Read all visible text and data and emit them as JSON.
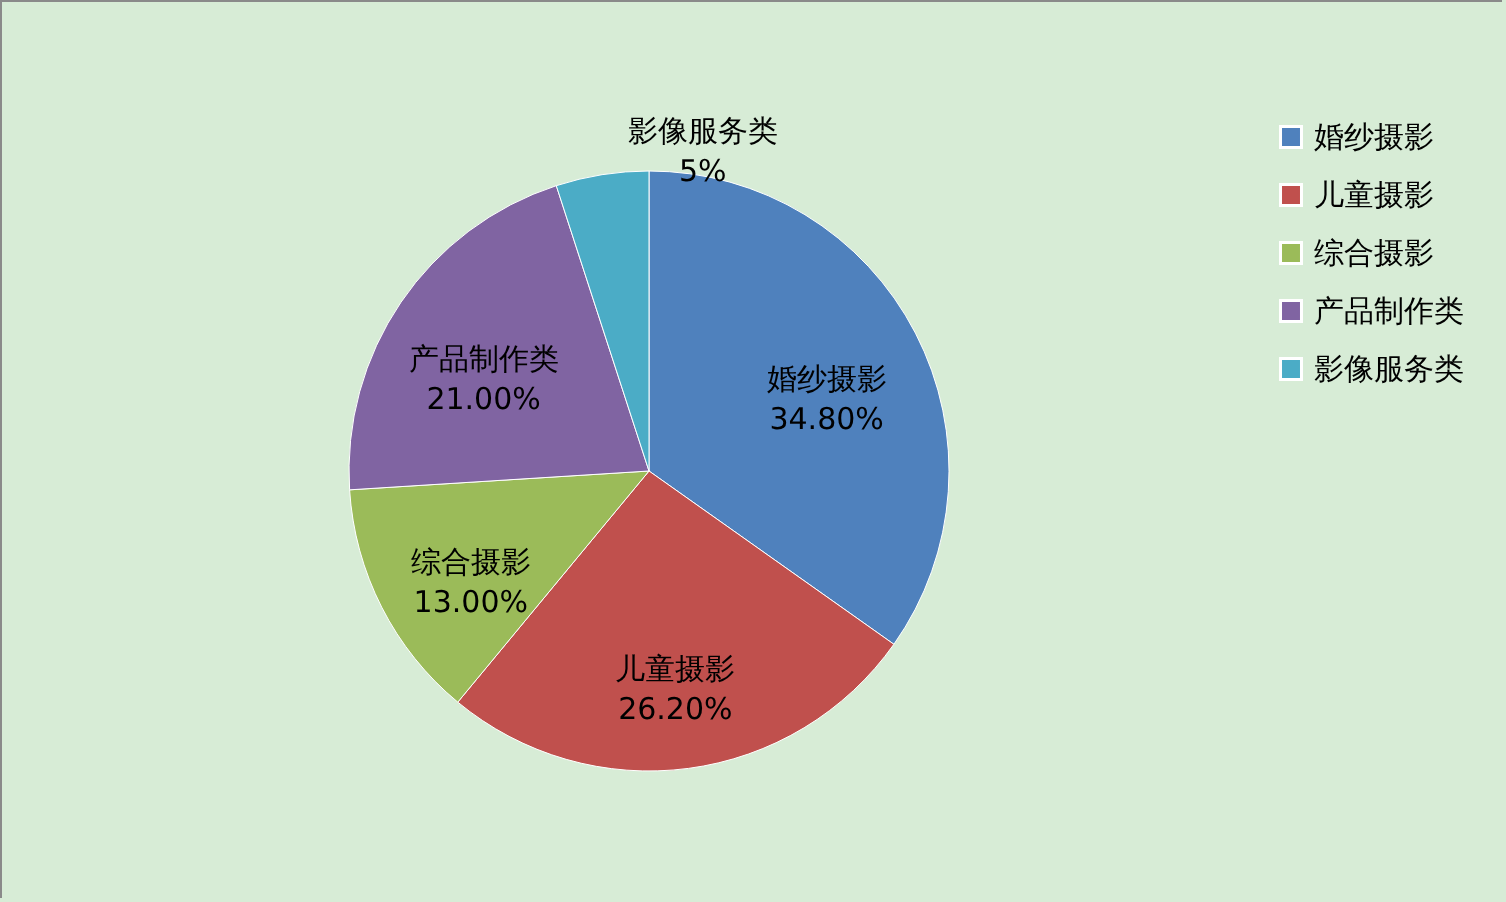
{
  "chart_data": {
    "type": "pie",
    "categories": [
      "婚纱摄影",
      "儿童摄影",
      "综合摄影",
      "产品制作类",
      "影像服务类"
    ],
    "values": [
      34.8,
      26.2,
      13,
      21,
      5
    ],
    "value_labels": [
      "34.80%",
      "26.20%",
      "13.00%",
      "21.00%",
      "5%"
    ],
    "colors": [
      "#4f81bd",
      "#c0504d",
      "#9bbb59",
      "#8064a2",
      "#4bacc6"
    ],
    "legend": "right"
  }
}
